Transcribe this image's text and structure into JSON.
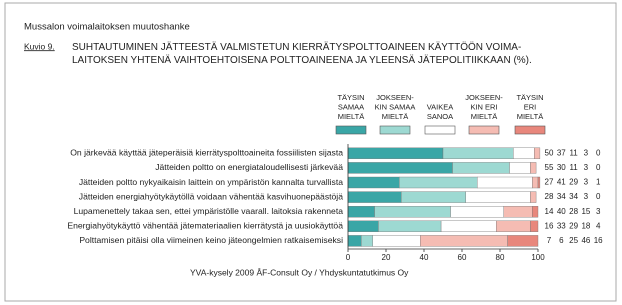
{
  "header": "Mussalon voimalaitoksen muutoshanke",
  "figure_label": "Kuvio 9.",
  "footer": "YVA-kysely 2009  ÅF-Consult Oy / Yhdyskuntatutkimus Oy",
  "chart_data": {
    "type": "stacked-barh",
    "title": "SUHTAUTUMINEN JÄTTEESTÄ VALMISTETUN KIERRÄTYSPOLTTOAINEEN KÄYTTÖÖN VOIMA-\nLAITOKSEN YHTENÄ VAIHTOEHTOISENA POLTTOAINEENA JA YLEENSÄ JÄTEPOLITIIKKAAN (%).",
    "categories": [
      "On järkevää käyttää jäteperäisiä kierrätyspolttoaineita fossiilisten sijasta",
      "Jätteiden poltto on energiataloudellisesti järkevää",
      "Jätteiden poltto nykyaikaisin laittein on ympäristön kannalta turvallista",
      "Jätteiden energiahyötykäytöllä voidaan vähentää kasvihuonepäästöjä",
      "Lupamenettely takaa sen, ettei ympäristölle vaarall. laitoksia rakenneta",
      "Energiahyötykäyttö vähentää jätemateriaalien kierrätystä ja uusiokäyttöä",
      "Polttamisen pitäisi olla viimeinen keino jäteongelmien ratkaisemiseksi"
    ],
    "series": [
      {
        "name": "TÄYSIN\nSAMAA\nMIELTÄ",
        "color": "#3aa6a6",
        "values": [
          50,
          55,
          27,
          28,
          14,
          16,
          7
        ]
      },
      {
        "name": "JOKSEEN-\nKIN SAMAA\nMIELTÄ",
        "color": "#9dd9d2",
        "values": [
          37,
          30,
          41,
          34,
          40,
          33,
          6
        ]
      },
      {
        "name": "VAIKEA\nSANOA",
        "color": "#ffffff",
        "values": [
          11,
          11,
          29,
          34,
          28,
          29,
          25
        ]
      },
      {
        "name": "JOKSEEN-\nKIN ERI\nMIELTÄ",
        "color": "#f5bcb3",
        "values": [
          3,
          3,
          3,
          3,
          15,
          18,
          46
        ]
      },
      {
        "name": "TÄYSIN\nERI\nMIELTÄ",
        "color": "#e8877c",
        "values": [
          0,
          0,
          1,
          0,
          3,
          4,
          16
        ]
      }
    ],
    "xlim": [
      0,
      100
    ],
    "xticks": [
      0,
      20,
      40,
      60,
      80,
      100
    ]
  }
}
